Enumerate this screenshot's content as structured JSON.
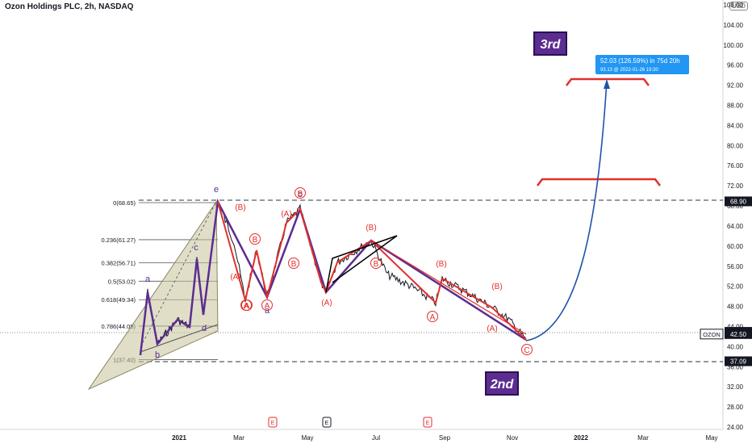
{
  "title": "Ozon Holdings PLC, 2h, NASDAQ",
  "currency": "USD",
  "chart_data": {
    "type": "line",
    "symbol": "OZON",
    "ylim": [
      24,
      108
    ],
    "y_ticks": [
      "108.00",
      "104.00",
      "100.00",
      "96.00",
      "92.00",
      "88.00",
      "84.00",
      "80.00",
      "76.00",
      "72.00",
      "68.00",
      "64.00",
      "60.00",
      "56.00",
      "52.00",
      "48.00",
      "44.00",
      "40.00",
      "36.00",
      "32.00",
      "28.00",
      "24.00"
    ],
    "x_ticks": [
      "2021",
      "Mar",
      "May",
      "Jul",
      "Sep",
      "Nov",
      "2022",
      "Mar",
      "May"
    ],
    "price_labels": [
      {
        "value": 68.9,
        "label": "68.90",
        "color": "#131722"
      },
      {
        "value": 42.94,
        "label": "42.94",
        "color": "#131722"
      },
      {
        "value": 42.5,
        "label": "42.50",
        "color": "#131722",
        "symbol": "OZON"
      },
      {
        "value": 37.09,
        "label": "37.09",
        "color": "#131722"
      }
    ],
    "fib_levels": [
      {
        "label": "0(68.65)",
        "value": 68.65
      },
      {
        "label": "0.236(61.27)",
        "value": 61.27
      },
      {
        "label": "0.382(56.71)",
        "value": 56.71
      },
      {
        "label": "0.5(53.02)",
        "value": 53.02
      },
      {
        "label": "0.618(49.34)",
        "value": 49.34
      },
      {
        "label": "0.786(44.09)",
        "value": 44.09
      },
      {
        "label": "1(37.40)",
        "value": 37.4
      }
    ],
    "wave_labels_purple": [
      "e",
      "a",
      "b",
      "c",
      "d",
      "b",
      "a"
    ],
    "wave_labels_red": [
      "(B)",
      "(A)",
      "B",
      "A",
      "B",
      "(A)",
      "(B)",
      "(A)",
      "B",
      "A",
      "(B)",
      "A",
      "(B)",
      "(A)",
      "B",
      "A",
      "C"
    ],
    "annotations": {
      "third": "3rd",
      "second": "2nd",
      "target_line1": "52.03 (126.59%) in 75d 20h",
      "target_line2": "93.13 @ 2022-01-26  19:30"
    },
    "event_markers": [
      "E",
      "E",
      "E"
    ],
    "colors": {
      "price": "#131722",
      "red": "#e0302c",
      "purple": "#5b2d91",
      "blue": "#1e53a8",
      "label_bg": "#2196f3"
    }
  }
}
